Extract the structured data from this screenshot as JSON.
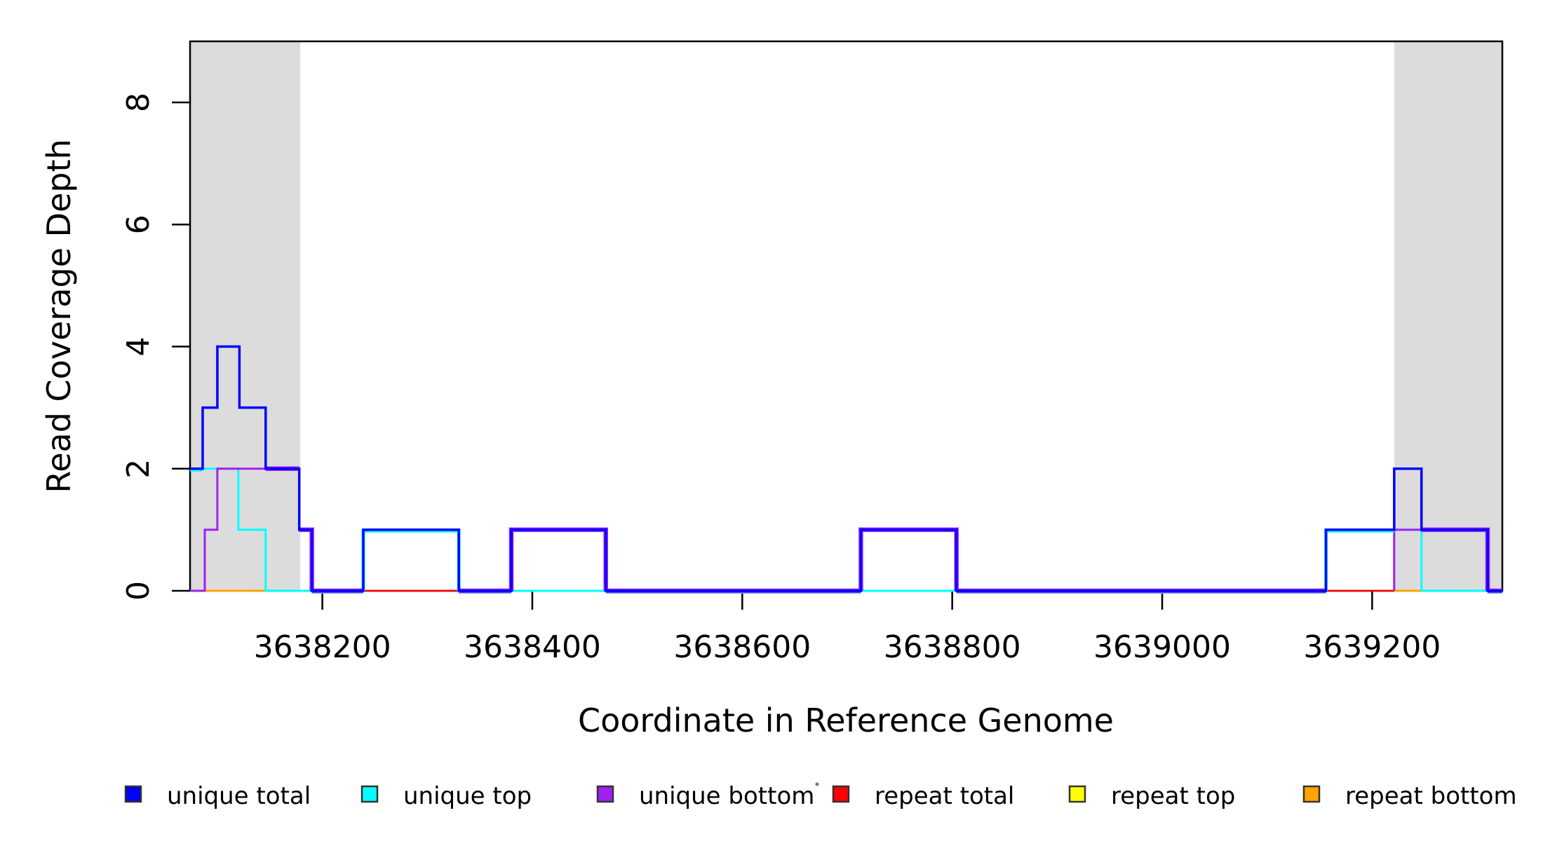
{
  "chart_data": {
    "type": "line",
    "subtype": "step-coverage-plot",
    "title": "",
    "xlabel": "Coordinate in Reference Genome",
    "ylabel": "Read Coverage Depth",
    "x_axis": {
      "label": "Coordinate in Reference Genome",
      "range": [
        3638074,
        3639324
      ],
      "ticks": [
        3638200,
        3638400,
        3638600,
        3638800,
        3639000,
        3639200
      ]
    },
    "y_axis": {
      "label": "Read Coverage Depth",
      "range": [
        0,
        9
      ],
      "ticks": [
        0,
        2,
        4,
        6,
        8
      ]
    },
    "highlight_regions": {
      "color": "#DCDCDC",
      "regions": [
        [
          3638074,
          3638179
        ],
        [
          3639221,
          3639324
        ]
      ]
    },
    "series": [
      {
        "name": "unique total",
        "color": "#0000FF",
        "segments": [
          [
            3638074,
            3638086,
            2
          ],
          [
            3638086,
            3638100,
            3
          ],
          [
            3638100,
            3638121,
            4
          ],
          [
            3638121,
            3638146,
            3
          ],
          [
            3638146,
            3638178,
            2
          ],
          [
            3638178,
            3638190,
            1
          ],
          [
            3638190,
            3638239,
            0
          ],
          [
            3638239,
            3638330,
            1
          ],
          [
            3638330,
            3638380,
            0
          ],
          [
            3638380,
            3638470,
            1
          ],
          [
            3638470,
            3638713,
            0
          ],
          [
            3638713,
            3638804,
            1
          ],
          [
            3638804,
            3639156,
            0
          ],
          [
            3639156,
            3639221,
            1
          ],
          [
            3639221,
            3639247,
            2
          ],
          [
            3639247,
            3639310,
            1
          ],
          [
            3639310,
            3639324,
            0
          ]
        ]
      },
      {
        "name": "unique top",
        "color": "#00FFFF",
        "segments": [
          [
            3638074,
            3638120,
            2
          ],
          [
            3638120,
            3638146,
            1
          ],
          [
            3638146,
            3638239,
            0
          ],
          [
            3638239,
            3638330,
            1
          ],
          [
            3638330,
            3639156,
            0
          ],
          [
            3639156,
            3639247,
            1
          ],
          [
            3639247,
            3639324,
            0
          ]
        ]
      },
      {
        "name": "unique bottom",
        "color": "#A020F0",
        "segments": [
          [
            3638074,
            3638088,
            0
          ],
          [
            3638088,
            3638100,
            1
          ],
          [
            3638100,
            3638178,
            2
          ],
          [
            3638178,
            3638190,
            1
          ],
          [
            3638190,
            3638239,
            0
          ],
          [
            3638330,
            3638380,
            0
          ],
          [
            3638380,
            3638470,
            1
          ],
          [
            3638470,
            3638713,
            0
          ],
          [
            3638713,
            3638804,
            1
          ],
          [
            3638804,
            3639156,
            0
          ],
          [
            3639221,
            3639310,
            1
          ],
          [
            3639310,
            3639324,
            0
          ]
        ]
      },
      {
        "name": "repeat total",
        "color": "#FF0000",
        "segments": [
          [
            3638074,
            3639324,
            0
          ]
        ]
      },
      {
        "name": "repeat top",
        "color": "#FFFF00",
        "segments": []
      },
      {
        "name": "repeat bottom",
        "color": "#FFA500",
        "segments": [
          [
            3638088,
            3638146,
            0
          ],
          [
            3639221,
            3639247,
            0
          ]
        ]
      }
    ],
    "legend": {
      "position": "bottom",
      "items": [
        {
          "label": "unique total",
          "color": "#0000FF"
        },
        {
          "label": "unique top",
          "color": "#00FFFF"
        },
        {
          "label": "unique bottom",
          "color": "#A020F0"
        },
        {
          "label": "repeat total",
          "color": "#FF0000"
        },
        {
          "label": "repeat top",
          "color": "#FFFF00"
        },
        {
          "label": "repeat bottom",
          "color": "#FFA500"
        }
      ],
      "stray_mark": "."
    }
  }
}
